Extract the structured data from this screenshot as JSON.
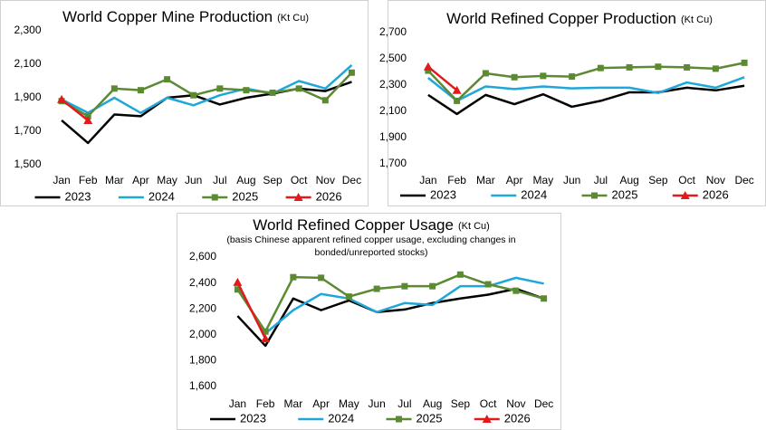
{
  "chart_data": [
    {
      "type": "line",
      "title": "World Copper Mine Production",
      "unit": "(Kt Cu)",
      "categories": [
        "Jan",
        "Feb",
        "Mar",
        "Apr",
        "May",
        "Jun",
        "Jul",
        "Aug",
        "Sep",
        "Oct",
        "Nov",
        "Dec"
      ],
      "ylim": [
        1500,
        2300
      ],
      "yticks": [
        {
          "value": 1500,
          "label": "1,500"
        },
        {
          "value": 1700,
          "label": "1,700"
        },
        {
          "value": 1900,
          "label": "1,900"
        },
        {
          "value": 2100,
          "label": "2,100"
        },
        {
          "value": 2300,
          "label": "2,300"
        }
      ],
      "grid": false,
      "series": [
        {
          "name": "2023",
          "color": "#000000",
          "values": [
            1765,
            1630,
            1800,
            1790,
            1900,
            1915,
            1860,
            1900,
            1925,
            1955,
            1940,
            1995
          ]
        },
        {
          "name": "2024",
          "color": "#1fa7d9",
          "values": [
            1890,
            1810,
            1900,
            1810,
            1900,
            1855,
            1915,
            1955,
            1925,
            2000,
            1955,
            2095
          ]
        },
        {
          "name": "2025",
          "color": "#5b8a32",
          "marker": "square",
          "values": [
            1880,
            1790,
            1955,
            1945,
            2010,
            1915,
            1955,
            1945,
            1930,
            1955,
            1885,
            2050
          ]
        },
        {
          "name": "2026",
          "color": "#e31a1c",
          "marker": "triangle",
          "values": [
            1890,
            1765,
            null,
            null,
            null,
            null,
            null,
            null,
            null,
            null,
            null,
            null
          ]
        }
      ]
    },
    {
      "type": "line",
      "title": "World Refined Copper Production",
      "unit": "(Kt Cu)",
      "categories": [
        "Jan",
        "Feb",
        "Mar",
        "Apr",
        "May",
        "Jun",
        "Jul",
        "Aug",
        "Sep",
        "Oct",
        "Nov",
        "Dec"
      ],
      "ylim": [
        1700,
        2700
      ],
      "yticks": [
        {
          "value": 1700,
          "label": "1,700"
        },
        {
          "value": 1900,
          "label": "1,900"
        },
        {
          "value": 2100,
          "label": "2,100"
        },
        {
          "value": 2300,
          "label": "2,300"
        },
        {
          "value": 2500,
          "label": "2,500"
        },
        {
          "value": 2700,
          "label": "2,700"
        }
      ],
      "grid": false,
      "series": [
        {
          "name": "2023",
          "color": "#000000",
          "values": [
            2225,
            2080,
            2225,
            2155,
            2230,
            2135,
            2180,
            2245,
            2245,
            2280,
            2260,
            2295
          ]
        },
        {
          "name": "2024",
          "color": "#1fa7d9",
          "values": [
            2355,
            2180,
            2290,
            2270,
            2290,
            2275,
            2280,
            2280,
            2240,
            2320,
            2280,
            2360
          ]
        },
        {
          "name": "2025",
          "color": "#5b8a32",
          "marker": "square",
          "values": [
            2410,
            2180,
            2390,
            2360,
            2370,
            2365,
            2430,
            2435,
            2440,
            2435,
            2425,
            2470
          ]
        },
        {
          "name": "2026",
          "color": "#e31a1c",
          "marker": "triangle",
          "values": [
            2440,
            2260,
            null,
            null,
            null,
            null,
            null,
            null,
            null,
            null,
            null,
            null
          ]
        }
      ]
    },
    {
      "type": "line",
      "title": "World Refined Copper Usage",
      "unit": "(Kt Cu)",
      "subtitle": [
        "(basis Chinese apparent refined copper usage, excluding changes in",
        "bonded/unreported stocks)"
      ],
      "categories": [
        "Jan",
        "Feb",
        "Mar",
        "Apr",
        "May",
        "Jun",
        "Jul",
        "Aug",
        "Sep",
        "Oct",
        "Nov",
        "Dec"
      ],
      "ylim": [
        1600,
        2600
      ],
      "yticks": [
        {
          "value": 1600,
          "label": "1,600"
        },
        {
          "value": 1800,
          "label": "1,800"
        },
        {
          "value": 2000,
          "label": "2,000"
        },
        {
          "value": 2200,
          "label": "2,200"
        },
        {
          "value": 2400,
          "label": "2,400"
        },
        {
          "value": 2600,
          "label": "2,600"
        }
      ],
      "grid": false,
      "series": [
        {
          "name": "2023",
          "color": "#000000",
          "values": [
            2145,
            1915,
            2280,
            2190,
            2265,
            2175,
            2195,
            2245,
            2280,
            2310,
            2355,
            2280
          ]
        },
        {
          "name": "2024",
          "color": "#1fa7d9",
          "values": [
            2360,
            2010,
            2190,
            2315,
            2280,
            2175,
            2245,
            2230,
            2375,
            2375,
            2440,
            2395
          ]
        },
        {
          "name": "2025",
          "color": "#5b8a32",
          "marker": "square",
          "values": [
            2350,
            2025,
            2445,
            2440,
            2295,
            2355,
            2375,
            2375,
            2465,
            2390,
            2340,
            2280
          ]
        },
        {
          "name": "2026",
          "color": "#e31a1c",
          "marker": "triangle",
          "values": [
            2405,
            1970,
            null,
            null,
            null,
            null,
            null,
            null,
            null,
            null,
            null,
            null
          ]
        }
      ]
    }
  ]
}
